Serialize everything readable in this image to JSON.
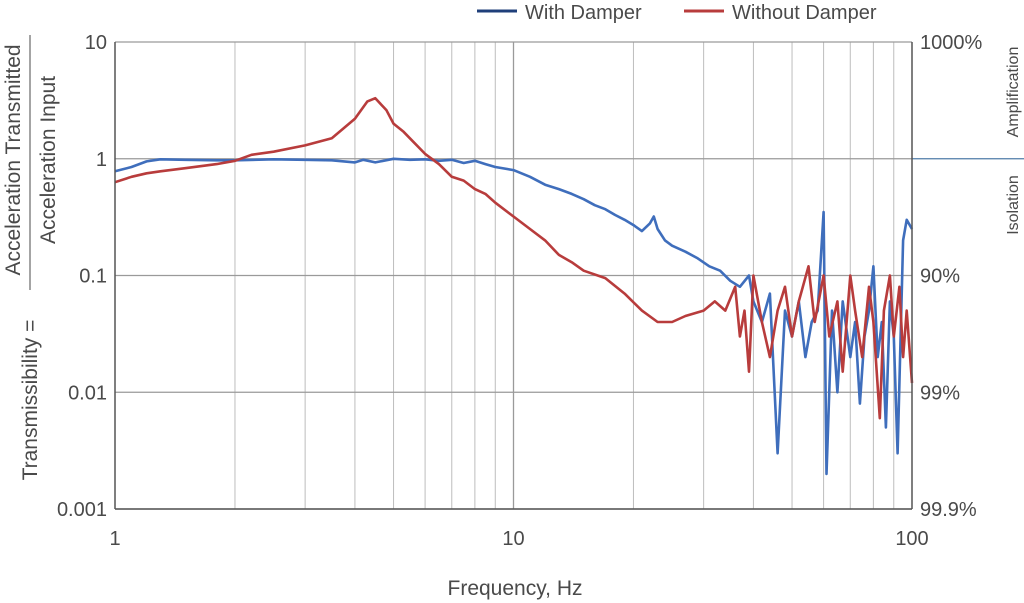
{
  "chart_data": {
    "type": "line",
    "x_scale": "log",
    "y_scale": "log",
    "xlim": [
      1,
      100
    ],
    "ylim": [
      0.001,
      10
    ],
    "xlabel": "Frequency, Hz",
    "ylabel_prefix": "Transmissibility =",
    "ylabel_numerator": "Acceleration Transmitted",
    "ylabel_denominator": "Acceleration Input",
    "x_ticks": [
      {
        "value": 1,
        "label": "1"
      },
      {
        "value": 10,
        "label": "10"
      },
      {
        "value": 100,
        "label": "100"
      }
    ],
    "y_ticks": [
      {
        "value": 10,
        "label": "10"
      },
      {
        "value": 1,
        "label": "1"
      },
      {
        "value": 0.1,
        "label": "0.1"
      },
      {
        "value": 0.01,
        "label": "0.01"
      },
      {
        "value": 0.001,
        "label": "0.001"
      }
    ],
    "right_ticks": [
      {
        "value": 10,
        "label": "1000%"
      },
      {
        "value": 0.1,
        "label": "90%"
      },
      {
        "value": 0.01,
        "label": "99%"
      },
      {
        "value": 0.001,
        "label": "99.9%"
      }
    ],
    "right_labels": {
      "upper": "Amplification",
      "lower": "Isolation"
    },
    "grid": true,
    "legend_position": "top-right",
    "series": [
      {
        "name": "With Damper",
        "legend_color": "#1f3f7a",
        "line_color": "#3f6ebc",
        "points": [
          [
            1,
            0.78
          ],
          [
            1.1,
            0.85
          ],
          [
            1.2,
            0.95
          ],
          [
            1.3,
            0.99
          ],
          [
            1.5,
            0.98
          ],
          [
            1.8,
            0.97
          ],
          [
            2.0,
            0.97
          ],
          [
            2.5,
            0.99
          ],
          [
            3.0,
            0.98
          ],
          [
            3.5,
            0.97
          ],
          [
            4.0,
            0.93
          ],
          [
            4.2,
            0.98
          ],
          [
            4.5,
            0.93
          ],
          [
            5.0,
            1.0
          ],
          [
            5.5,
            0.98
          ],
          [
            6.0,
            0.99
          ],
          [
            6.5,
            0.96
          ],
          [
            7.0,
            0.98
          ],
          [
            7.5,
            0.92
          ],
          [
            8.0,
            0.96
          ],
          [
            8.5,
            0.9
          ],
          [
            9.0,
            0.85
          ],
          [
            10,
            0.8
          ],
          [
            11,
            0.7
          ],
          [
            12,
            0.6
          ],
          [
            13,
            0.55
          ],
          [
            14,
            0.5
          ],
          [
            15,
            0.45
          ],
          [
            16,
            0.4
          ],
          [
            17,
            0.37
          ],
          [
            18,
            0.33
          ],
          [
            19,
            0.3
          ],
          [
            20,
            0.27
          ],
          [
            21,
            0.24
          ],
          [
            22,
            0.28
          ],
          [
            22.5,
            0.32
          ],
          [
            23,
            0.25
          ],
          [
            24,
            0.2
          ],
          [
            25,
            0.18
          ],
          [
            27,
            0.16
          ],
          [
            29,
            0.14
          ],
          [
            31,
            0.12
          ],
          [
            33,
            0.11
          ],
          [
            35,
            0.09
          ],
          [
            37,
            0.08
          ],
          [
            39,
            0.1
          ],
          [
            40,
            0.06
          ],
          [
            42,
            0.04
          ],
          [
            44,
            0.07
          ],
          [
            46,
            0.003
          ],
          [
            48,
            0.05
          ],
          [
            50,
            0.03
          ],
          [
            52,
            0.06
          ],
          [
            54,
            0.02
          ],
          [
            56,
            0.04
          ],
          [
            58,
            0.05
          ],
          [
            60,
            0.35
          ],
          [
            61,
            0.002
          ],
          [
            63,
            0.05
          ],
          [
            65,
            0.01
          ],
          [
            67,
            0.06
          ],
          [
            70,
            0.02
          ],
          [
            72,
            0.04
          ],
          [
            74,
            0.008
          ],
          [
            76,
            0.03
          ],
          [
            78,
            0.05
          ],
          [
            80,
            0.12
          ],
          [
            82,
            0.02
          ],
          [
            84,
            0.04
          ],
          [
            86,
            0.005
          ],
          [
            88,
            0.06
          ],
          [
            90,
            0.03
          ],
          [
            92,
            0.003
          ],
          [
            95,
            0.2
          ],
          [
            97,
            0.3
          ],
          [
            100,
            0.25
          ]
        ]
      },
      {
        "name": "Without Damper",
        "legend_color": "#b83c3c",
        "line_color": "#b83c3c",
        "points": [
          [
            1,
            0.63
          ],
          [
            1.1,
            0.7
          ],
          [
            1.2,
            0.75
          ],
          [
            1.3,
            0.78
          ],
          [
            1.5,
            0.83
          ],
          [
            1.8,
            0.9
          ],
          [
            2.0,
            0.96
          ],
          [
            2.2,
            1.08
          ],
          [
            2.5,
            1.15
          ],
          [
            3.0,
            1.3
          ],
          [
            3.5,
            1.5
          ],
          [
            4.0,
            2.2
          ],
          [
            4.3,
            3.1
          ],
          [
            4.5,
            3.3
          ],
          [
            4.8,
            2.6
          ],
          [
            5.0,
            2.0
          ],
          [
            5.3,
            1.7
          ],
          [
            5.6,
            1.4
          ],
          [
            6.0,
            1.1
          ],
          [
            6.5,
            0.9
          ],
          [
            7.0,
            0.7
          ],
          [
            7.5,
            0.65
          ],
          [
            8.0,
            0.55
          ],
          [
            8.5,
            0.5
          ],
          [
            9.0,
            0.42
          ],
          [
            10,
            0.32
          ],
          [
            11,
            0.25
          ],
          [
            12,
            0.2
          ],
          [
            13,
            0.15
          ],
          [
            14,
            0.13
          ],
          [
            15,
            0.11
          ],
          [
            17,
            0.095
          ],
          [
            19,
            0.07
          ],
          [
            21,
            0.05
          ],
          [
            23,
            0.04
          ],
          [
            25,
            0.04
          ],
          [
            27,
            0.045
          ],
          [
            30,
            0.05
          ],
          [
            32,
            0.06
          ],
          [
            34,
            0.05
          ],
          [
            36,
            0.08
          ],
          [
            37,
            0.03
          ],
          [
            38,
            0.05
          ],
          [
            39,
            0.015
          ],
          [
            40,
            0.1
          ],
          [
            42,
            0.04
          ],
          [
            44,
            0.02
          ],
          [
            46,
            0.05
          ],
          [
            48,
            0.08
          ],
          [
            50,
            0.03
          ],
          [
            52,
            0.06
          ],
          [
            55,
            0.12
          ],
          [
            57,
            0.04
          ],
          [
            60,
            0.1
          ],
          [
            62,
            0.03
          ],
          [
            65,
            0.06
          ],
          [
            67,
            0.015
          ],
          [
            70,
            0.1
          ],
          [
            72,
            0.05
          ],
          [
            75,
            0.02
          ],
          [
            78,
            0.08
          ],
          [
            80,
            0.04
          ],
          [
            83,
            0.006
          ],
          [
            85,
            0.05
          ],
          [
            88,
            0.1
          ],
          [
            90,
            0.03
          ],
          [
            93,
            0.08
          ],
          [
            95,
            0.02
          ],
          [
            97,
            0.05
          ],
          [
            100,
            0.012
          ]
        ]
      }
    ]
  }
}
